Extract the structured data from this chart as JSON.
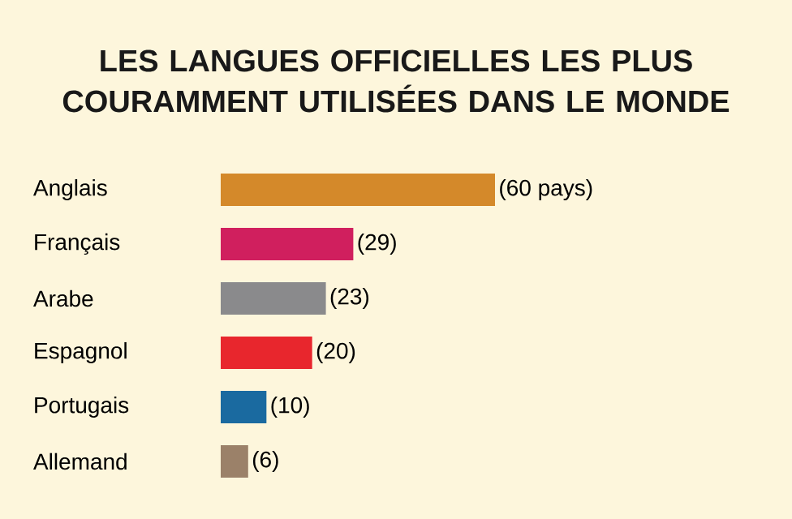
{
  "chart_data": {
    "type": "bar",
    "orientation": "horizontal",
    "title": "LES LANGUES OFFICIELLES LES PLUS COURAMMENT UTILISÉES DANS LE MONDE",
    "categories": [
      "Anglais",
      "Français",
      "Arabe",
      "Espagnol",
      "Portugais",
      "Allemand"
    ],
    "values": [
      60,
      29,
      23,
      20,
      10,
      6
    ],
    "colors": [
      "#d4892a",
      "#d01f5e",
      "#8a8a8c",
      "#e8262d",
      "#1a6aa0",
      "#9b8169"
    ],
    "value_labels": [
      "(60 pays)",
      "(29)",
      "(23)",
      "(20)",
      "(10)",
      "(6)"
    ]
  }
}
